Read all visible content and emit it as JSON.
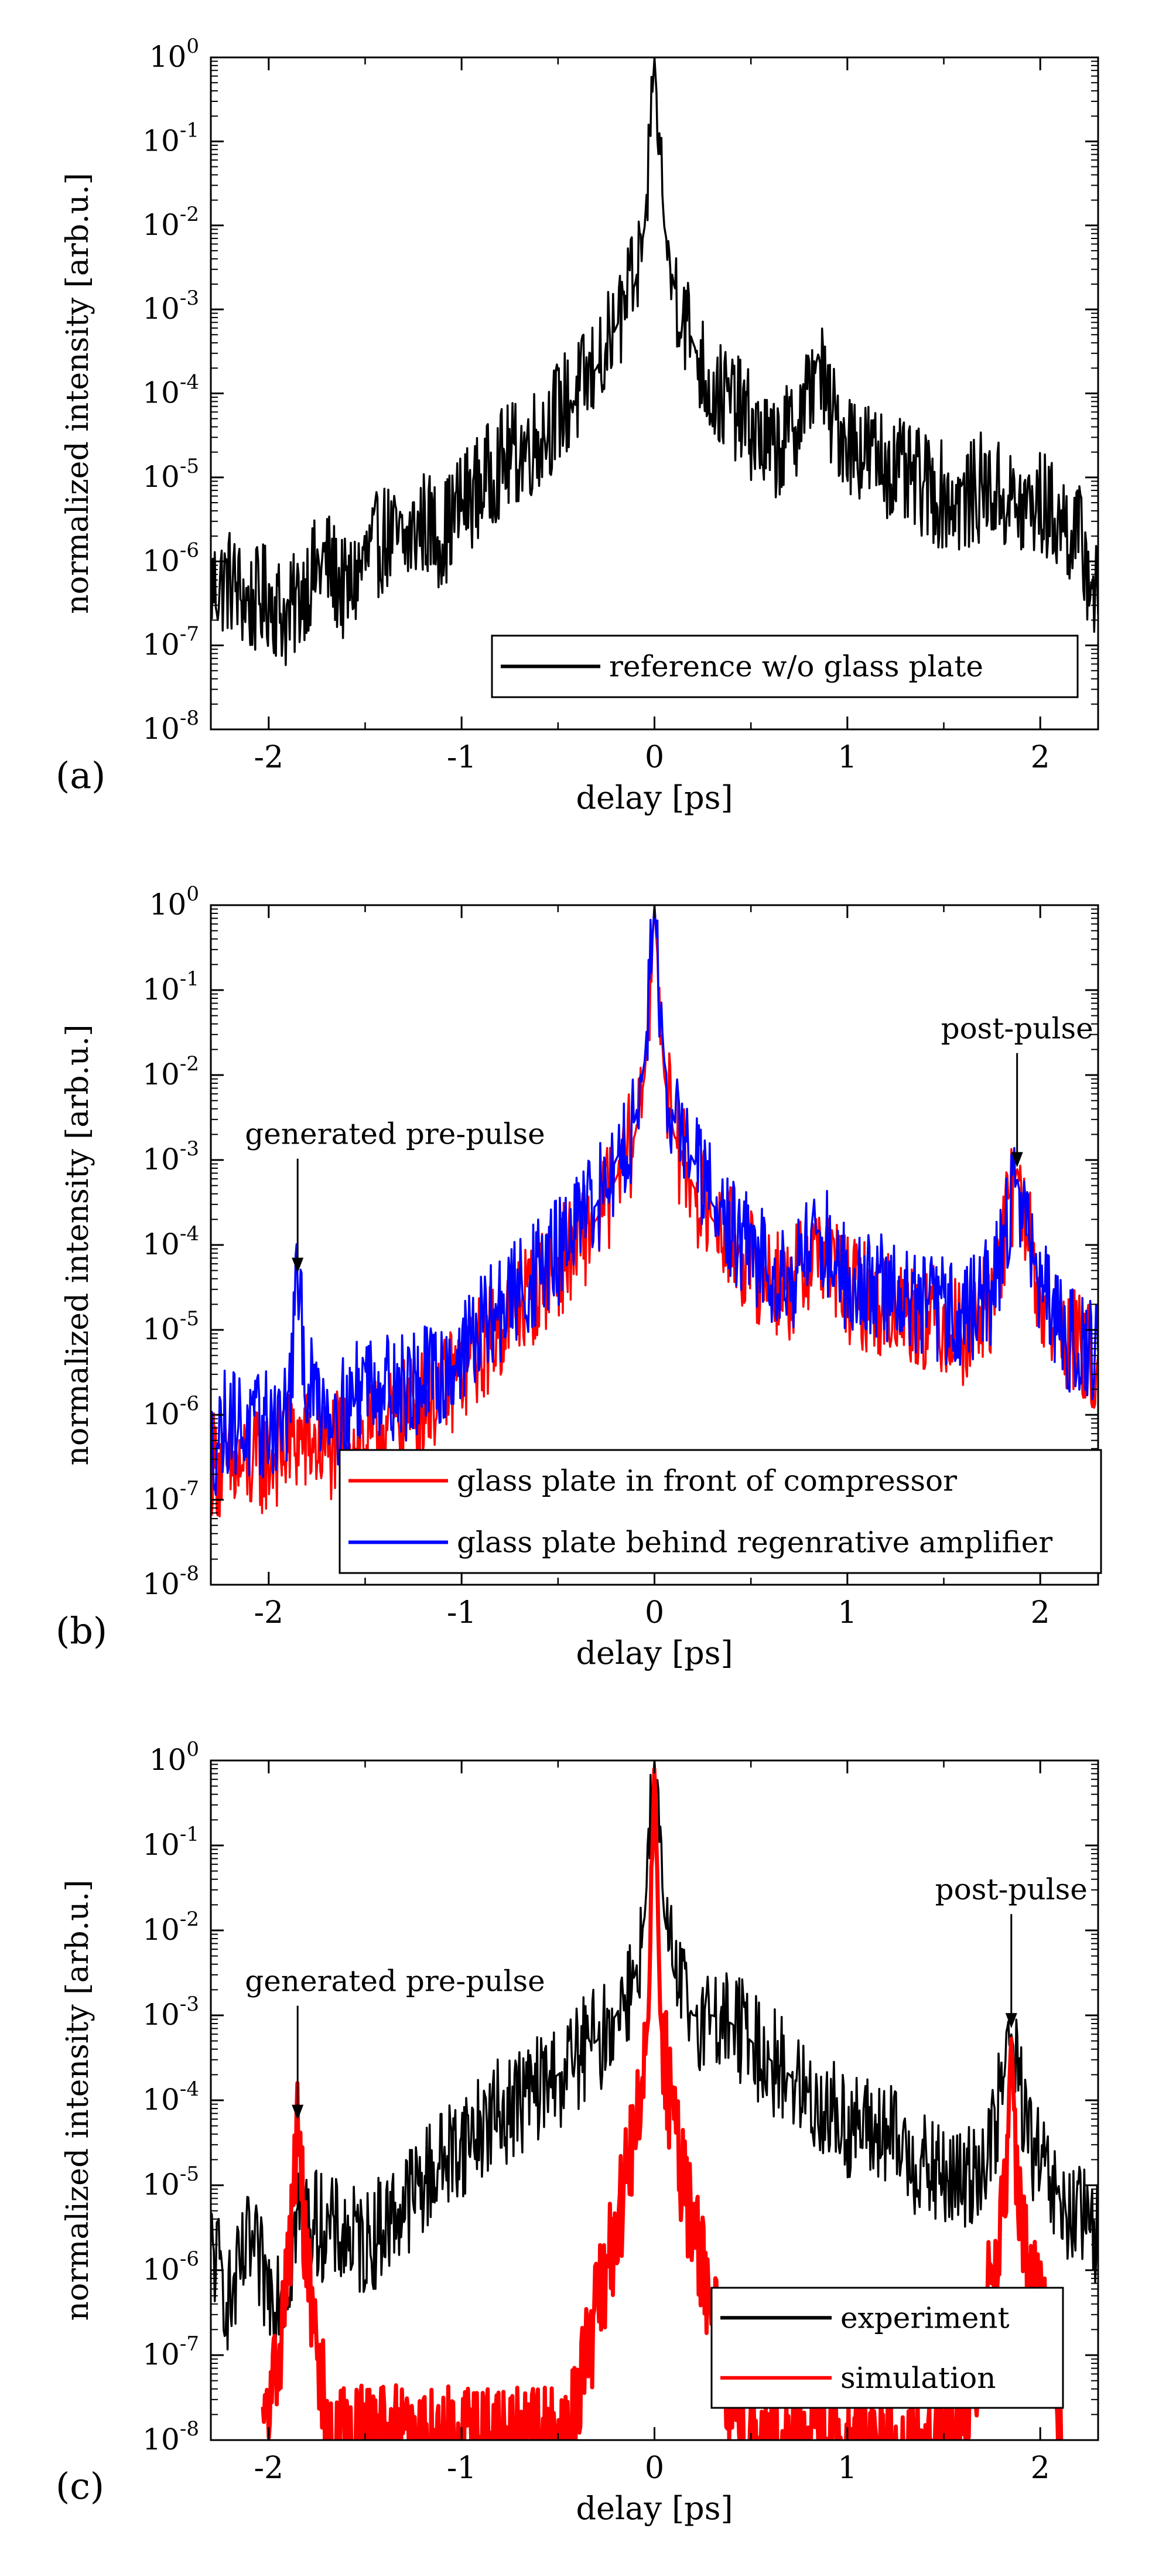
{
  "figure": {
    "colors": {
      "axis": "#000000",
      "black": "#000000",
      "red": "#ff0000",
      "blue": "#0000ff"
    },
    "panels": [
      {
        "label": "(a)",
        "xlabel": "delay [ps]",
        "ylabel": "normalized intensity [arb.u.]",
        "xticks": [
          "-2",
          "-1",
          "0",
          "1",
          "2"
        ],
        "yticks": [
          {
            "base": "10",
            "exp": "0"
          },
          {
            "base": "10",
            "exp": "-1"
          },
          {
            "base": "10",
            "exp": "-2"
          },
          {
            "base": "10",
            "exp": "-3"
          },
          {
            "base": "10",
            "exp": "-4"
          },
          {
            "base": "10",
            "exp": "-5"
          },
          {
            "base": "10",
            "exp": "-6"
          },
          {
            "base": "10",
            "exp": "-7"
          },
          {
            "base": "10",
            "exp": "-8"
          }
        ],
        "legend": [
          {
            "label": "reference w/o glass plate",
            "color": "#000000"
          }
        ],
        "annotations": []
      },
      {
        "label": "(b)",
        "xlabel": "delay [ps]",
        "ylabel": "normalized intensity [arb.u.]",
        "xticks": [
          "-2",
          "-1",
          "0",
          "1",
          "2"
        ],
        "yticks": [
          {
            "base": "10",
            "exp": "0"
          },
          {
            "base": "10",
            "exp": "-1"
          },
          {
            "base": "10",
            "exp": "-2"
          },
          {
            "base": "10",
            "exp": "-3"
          },
          {
            "base": "10",
            "exp": "-4"
          },
          {
            "base": "10",
            "exp": "-5"
          },
          {
            "base": "10",
            "exp": "-6"
          },
          {
            "base": "10",
            "exp": "-7"
          },
          {
            "base": "10",
            "exp": "-8"
          }
        ],
        "legend": [
          {
            "label": "glass plate in front of compressor",
            "color": "#ff0000"
          },
          {
            "label": "glass plate behind regenrative amplifier",
            "color": "#0000ff"
          }
        ],
        "annotations": [
          {
            "text": "generated pre-pulse",
            "x": -1.85,
            "y": 4e-05
          },
          {
            "text": "post-pulse",
            "x": 1.88,
            "y": 0.0007
          }
        ]
      },
      {
        "label": "(c)",
        "xlabel": "delay [ps]",
        "ylabel": "normalized intensity [arb.u.]",
        "xticks": [
          "-2",
          "-1",
          "0",
          "1",
          "2"
        ],
        "yticks": [
          {
            "base": "10",
            "exp": "0"
          },
          {
            "base": "10",
            "exp": "-1"
          },
          {
            "base": "10",
            "exp": "-2"
          },
          {
            "base": "10",
            "exp": "-3"
          },
          {
            "base": "10",
            "exp": "-4"
          },
          {
            "base": "10",
            "exp": "-5"
          },
          {
            "base": "10",
            "exp": "-6"
          },
          {
            "base": "10",
            "exp": "-7"
          },
          {
            "base": "10",
            "exp": "-8"
          }
        ],
        "legend": [
          {
            "label": "experiment",
            "color": "#000000"
          },
          {
            "label": "simulation",
            "color": "#ff0000"
          }
        ],
        "annotations": [
          {
            "text": "generated pre-pulse",
            "x": -1.85,
            "y": 5e-05
          },
          {
            "text": "post-pulse",
            "x": 1.85,
            "y": 0.0006
          }
        ]
      }
    ]
  },
  "chart_data": [
    {
      "type": "line",
      "panel": "(a)",
      "xlabel": "delay [ps]",
      "ylabel": "normalized intensity [arb.u.]",
      "xlim": [
        -2.3,
        2.3
      ],
      "ylim": [
        1e-08,
        1
      ],
      "yscale": "log",
      "legend_location": "lower-right",
      "series": [
        {
          "name": "reference w/o glass plate",
          "color": "#000000",
          "points": [
            [
              -2.3,
              5e-07
            ],
            [
              -2.2,
              6e-07
            ],
            [
              -2.1,
              3e-07
            ],
            [
              -2.0,
              4e-07
            ],
            [
              -1.9,
              2e-07
            ],
            [
              -1.8,
              6e-07
            ],
            [
              -1.7,
              1e-06
            ],
            [
              -1.6,
              4e-07
            ],
            [
              -1.5,
              1e-06
            ],
            [
              -1.4,
              2e-06
            ],
            [
              -1.3,
              1.5e-06
            ],
            [
              -1.2,
              3e-06
            ],
            [
              -1.1,
              2e-06
            ],
            [
              -1.0,
              5e-06
            ],
            [
              -0.9,
              8e-06
            ],
            [
              -0.8,
              1.5e-05
            ],
            [
              -0.7,
              2e-05
            ],
            [
              -0.6,
              3e-05
            ],
            [
              -0.5,
              6e-05
            ],
            [
              -0.4,
              0.0001
            ],
            [
              -0.3,
              0.0002
            ],
            [
              -0.2,
              0.0006
            ],
            [
              -0.1,
              0.002
            ],
            [
              -0.05,
              0.01
            ],
            [
              0.0,
              1.0
            ],
            [
              0.05,
              0.01
            ],
            [
              0.1,
              0.002
            ],
            [
              0.2,
              0.0004
            ],
            [
              0.3,
              0.0001
            ],
            [
              0.4,
              8e-05
            ],
            [
              0.5,
              4e-05
            ],
            [
              0.6,
              2e-05
            ],
            [
              0.7,
              3e-05
            ],
            [
              0.8,
              0.0001
            ],
            [
              0.85,
              0.0003
            ],
            [
              0.9,
              6e-05
            ],
            [
              1.0,
              3e-05
            ],
            [
              1.1,
              2e-05
            ],
            [
              1.2,
              1.5e-05
            ],
            [
              1.3,
              1e-05
            ],
            [
              1.4,
              8e-06
            ],
            [
              1.5,
              6e-06
            ],
            [
              1.6,
              5e-06
            ],
            [
              1.7,
              8e-06
            ],
            [
              1.8,
              6e-06
            ],
            [
              1.9,
              4e-06
            ],
            [
              2.0,
              5e-06
            ],
            [
              2.1,
              3e-06
            ],
            [
              2.2,
              2e-06
            ],
            [
              2.3,
              3e-07
            ]
          ]
        }
      ]
    },
    {
      "type": "line",
      "panel": "(b)",
      "xlabel": "delay [ps]",
      "ylabel": "normalized intensity [arb.u.]",
      "xlim": [
        -2.3,
        2.3
      ],
      "ylim": [
        1e-08,
        1
      ],
      "yscale": "log",
      "legend_location": "lower-right",
      "series": [
        {
          "name": "glass plate in front of compressor",
          "color": "#ff0000",
          "points": [
            [
              -2.3,
              3e-07
            ],
            [
              -2.2,
              2e-07
            ],
            [
              -2.0,
              3e-07
            ],
            [
              -1.85,
              5e-07
            ],
            [
              -1.7,
              4e-07
            ],
            [
              -1.5,
              5e-07
            ],
            [
              -1.3,
              1e-06
            ],
            [
              -1.1,
              2e-06
            ],
            [
              -0.9,
              6e-06
            ],
            [
              -0.7,
              2e-05
            ],
            [
              -0.5,
              6e-05
            ],
            [
              -0.3,
              0.0002
            ],
            [
              -0.2,
              0.0006
            ],
            [
              -0.1,
              0.002
            ],
            [
              -0.05,
              0.01
            ],
            [
              0.0,
              1.0
            ],
            [
              0.05,
              0.01
            ],
            [
              0.1,
              0.002
            ],
            [
              0.2,
              0.0005
            ],
            [
              0.3,
              0.0002
            ],
            [
              0.5,
              6e-05
            ],
            [
              0.7,
              3e-05
            ],
            [
              0.85,
              0.0001
            ],
            [
              1.0,
              3e-05
            ],
            [
              1.2,
              2e-05
            ],
            [
              1.4,
              1.5e-05
            ],
            [
              1.6,
              1e-05
            ],
            [
              1.75,
              2e-05
            ],
            [
              1.88,
              0.0008
            ],
            [
              2.0,
              2e-05
            ],
            [
              2.1,
              1e-05
            ],
            [
              2.3,
              4e-06
            ]
          ]
        },
        {
          "name": "glass plate behind regenrative amplifier",
          "color": "#0000ff",
          "points": [
            [
              -2.3,
              4e-07
            ],
            [
              -2.2,
              1e-06
            ],
            [
              -2.1,
              6e-07
            ],
            [
              -2.0,
              8e-07
            ],
            [
              -1.9,
              1e-06
            ],
            [
              -1.85,
              4e-05
            ],
            [
              -1.8,
              2e-06
            ],
            [
              -1.6,
              1e-06
            ],
            [
              -1.5,
              3e-06
            ],
            [
              -1.3,
              2e-06
            ],
            [
              -1.1,
              3e-06
            ],
            [
              -0.9,
              1e-05
            ],
            [
              -0.7,
              3e-05
            ],
            [
              -0.5,
              8e-05
            ],
            [
              -0.3,
              0.0003
            ],
            [
              -0.2,
              0.001
            ],
            [
              -0.1,
              0.003
            ],
            [
              -0.05,
              0.015
            ],
            [
              0.0,
              1.0
            ],
            [
              0.05,
              0.015
            ],
            [
              0.1,
              0.003
            ],
            [
              0.2,
              0.001
            ],
            [
              0.3,
              0.0003
            ],
            [
              0.5,
              8e-05
            ],
            [
              0.7,
              4e-05
            ],
            [
              0.85,
              0.00015
            ],
            [
              1.0,
              4e-05
            ],
            [
              1.2,
              3e-05
            ],
            [
              1.4,
              2e-05
            ],
            [
              1.6,
              1.5e-05
            ],
            [
              1.75,
              3e-05
            ],
            [
              1.88,
              0.0006
            ],
            [
              2.0,
              3e-05
            ],
            [
              2.1,
              1e-05
            ],
            [
              2.3,
              5e-06
            ]
          ]
        }
      ]
    },
    {
      "type": "line",
      "panel": "(c)",
      "xlabel": "delay [ps]",
      "ylabel": "normalized intensity [arb.u.]",
      "xlim": [
        -2.3,
        2.3
      ],
      "ylim": [
        1e-08,
        1
      ],
      "yscale": "log",
      "legend_location": "lower-right",
      "series": [
        {
          "name": "experiment",
          "color": "#000000",
          "points": [
            [
              -2.3,
              2e-06
            ],
            [
              -2.2,
              4e-07
            ],
            [
              -2.1,
              2e-06
            ],
            [
              -2.0,
              6e-07
            ],
            [
              -1.9,
              8e-07
            ],
            [
              -1.85,
              5e-06
            ],
            [
              -1.7,
              3e-06
            ],
            [
              -1.5,
              2e-06
            ],
            [
              -1.3,
              6e-06
            ],
            [
              -1.1,
              2e-05
            ],
            [
              -0.9,
              5e-05
            ],
            [
              -0.7,
              0.0001
            ],
            [
              -0.5,
              0.0002
            ],
            [
              -0.3,
              0.0005
            ],
            [
              -0.2,
              0.001
            ],
            [
              -0.1,
              0.003
            ],
            [
              -0.05,
              0.015
            ],
            [
              0.0,
              1.0
            ],
            [
              0.05,
              0.015
            ],
            [
              0.1,
              0.003
            ],
            [
              0.2,
              0.001
            ],
            [
              0.3,
              0.001
            ],
            [
              0.4,
              0.0008
            ],
            [
              0.5,
              0.0005
            ],
            [
              0.6,
              0.0003
            ],
            [
              0.7,
              0.0002
            ],
            [
              0.8,
              0.0001
            ],
            [
              0.9,
              8e-05
            ],
            [
              1.0,
              5e-05
            ],
            [
              1.2,
              4e-05
            ],
            [
              1.4,
              1.5e-05
            ],
            [
              1.6,
              1e-05
            ],
            [
              1.75,
              3e-05
            ],
            [
              1.85,
              0.0006
            ],
            [
              1.95,
              3e-05
            ],
            [
              2.1,
              5e-06
            ],
            [
              2.3,
              3e-06
            ]
          ]
        },
        {
          "name": "simulation",
          "color": "#ff0000",
          "points": [
            [
              -2.03,
              1e-08
            ],
            [
              -1.95,
              1e-07
            ],
            [
              -1.9,
              1e-06
            ],
            [
              -1.85,
              5e-05
            ],
            [
              -1.8,
              1e-06
            ],
            [
              -1.75,
              1e-07
            ],
            [
              -1.68,
              1e-08
            ],
            [
              -0.45,
              1e-08
            ],
            [
              -0.35,
              1e-07
            ],
            [
              -0.25,
              1e-06
            ],
            [
              -0.15,
              1e-05
            ],
            [
              -0.08,
              0.0001
            ],
            [
              -0.03,
              0.001
            ],
            [
              0.0,
              1.0
            ],
            [
              0.03,
              0.001
            ],
            [
              0.08,
              0.0001
            ],
            [
              0.15,
              1e-05
            ],
            [
              0.25,
              1e-06
            ],
            [
              0.35,
              1e-07
            ],
            [
              0.45,
              1e-08
            ],
            [
              1.58,
              1e-08
            ],
            [
              1.68,
              1e-07
            ],
            [
              1.75,
              1e-06
            ],
            [
              1.82,
              1e-05
            ],
            [
              1.85,
              0.0006
            ],
            [
              1.88,
              1e-05
            ],
            [
              1.95,
              1e-06
            ],
            [
              2.05,
              1e-07
            ],
            [
              2.12,
              1e-08
            ]
          ]
        }
      ]
    }
  ]
}
